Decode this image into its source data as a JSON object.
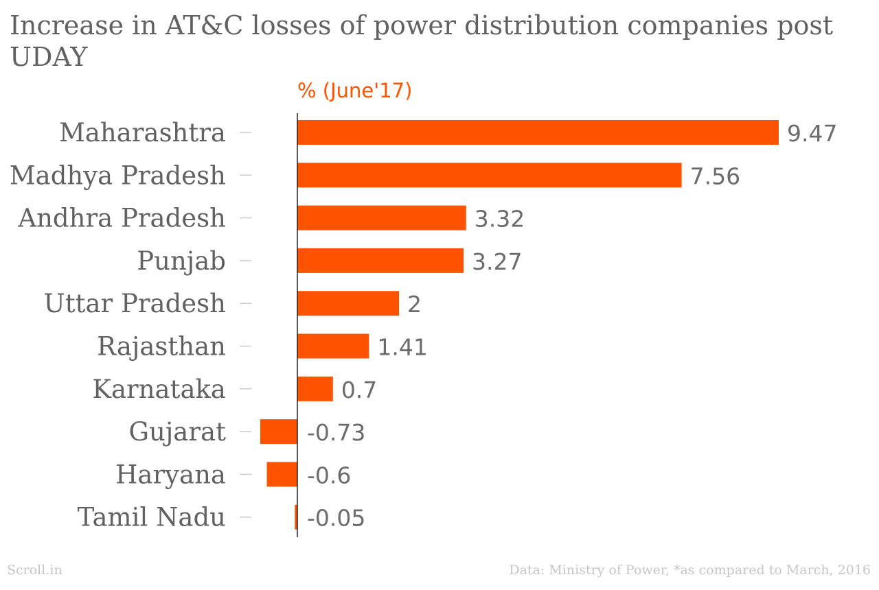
{
  "chart_data": {
    "type": "bar",
    "orientation": "horizontal",
    "title": "Increase in AT&C losses of power distribution companies post UDAY",
    "series": [
      {
        "name": "% (June'17)",
        "values": [
          9.47,
          7.56,
          3.32,
          3.27,
          2,
          1.41,
          0.7,
          -0.73,
          -0.6,
          -0.05
        ]
      }
    ],
    "categories": [
      "Maharashtra",
      "Madhya Pradesh",
      "Andhra Pradesh",
      "Punjab",
      "Uttar Pradesh",
      "Rajasthan",
      "Karnataka",
      "Gujarat",
      "Haryana",
      "Tamil Nadu"
    ],
    "value_labels": [
      "9.47",
      "7.56",
      "3.32",
      "3.27",
      "2",
      "1.41",
      "0.7",
      "-0.73",
      "-0.6",
      "-0.05"
    ],
    "xlim": [
      -0.73,
      9.47
    ],
    "grid": false,
    "legend": "top",
    "colors": {
      "bar": "#ff5300",
      "series_label": "#ff5300",
      "title": "#616161",
      "category_label": "#616161",
      "value_label": "#6b6b6b",
      "tick": "#cccccc",
      "axis": "#222222",
      "footer": "#c6c6c6"
    }
  },
  "footer": {
    "source_left": "Scroll.in",
    "source_right": "Data: Ministry of Power, *as compared to March, 2016"
  }
}
